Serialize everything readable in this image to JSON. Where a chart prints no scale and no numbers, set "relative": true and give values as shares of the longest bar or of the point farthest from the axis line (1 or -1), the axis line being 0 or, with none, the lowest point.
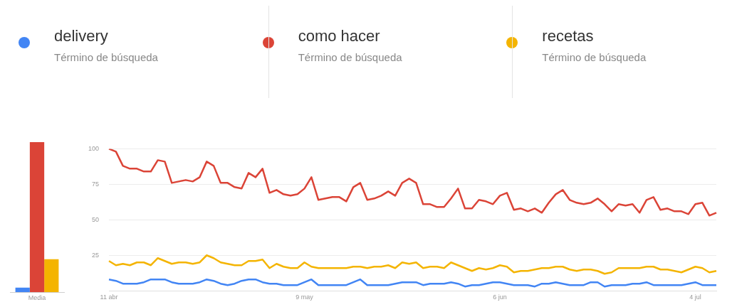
{
  "chart_data": [
    {
      "type": "bar",
      "relative": true,
      "categories": [
        "Media"
      ],
      "grid": false,
      "legend": false,
      "series": [
        {
          "color": "#4285f4",
          "values": [
            0.03
          ]
        },
        {
          "color": "#db4437",
          "values": [
            1
          ]
        },
        {
          "color": "#f4b400",
          "values": [
            0.22
          ]
        }
      ]
    },
    {
      "type": "line",
      "legend": "top",
      "grid": "y",
      "marker": "none",
      "line_style": "solid",
      "annotations": [
        "Término de búsqueda",
        "Término de búsqueda",
        "Término de búsqueda"
      ],
      "categories": [
        "11 abr",
        null,
        null,
        null,
        null,
        null,
        null,
        null,
        null,
        null,
        null,
        null,
        null,
        null,
        null,
        null,
        null,
        null,
        null,
        null,
        null,
        null,
        null,
        null,
        null,
        null,
        null,
        null,
        "9 may",
        null,
        null,
        null,
        null,
        null,
        null,
        null,
        null,
        null,
        null,
        null,
        null,
        null,
        null,
        null,
        null,
        null,
        null,
        null,
        null,
        null,
        null,
        null,
        null,
        null,
        null,
        null,
        "6 jun",
        null,
        null,
        null,
        null,
        null,
        null,
        null,
        null,
        null,
        null,
        null,
        null,
        null,
        null,
        null,
        null,
        null,
        null,
        null,
        null,
        null,
        null,
        null,
        null,
        null,
        null,
        null,
        "4 jul",
        null,
        null,
        null
      ],
      "ylim": [
        0,
        100
      ],
      "yticks": [
        {
          "value": 0,
          "label": null
        },
        25,
        50,
        75,
        100
      ],
      "series": [
        {
          "name": "delivery",
          "color": "#4285f4",
          "values": [
            8,
            7,
            5,
            5,
            5,
            6,
            8,
            8,
            8,
            6,
            5,
            5,
            5,
            6,
            8,
            7,
            5,
            4,
            5,
            7,
            8,
            8,
            6,
            5,
            5,
            4,
            4,
            4,
            6,
            8,
            4,
            4,
            4,
            4,
            4,
            6,
            8,
            4,
            4,
            4,
            4,
            5,
            6,
            6,
            6,
            4,
            5,
            5,
            5,
            6,
            5,
            3,
            4,
            4,
            5,
            6,
            6,
            5,
            4,
            4,
            4,
            3,
            5,
            5,
            6,
            5,
            4,
            4,
            4,
            6,
            6,
            3,
            4,
            4,
            4,
            5,
            5,
            6,
            4,
            4,
            4,
            4,
            4,
            5,
            6,
            4,
            4,
            4
          ]
        },
        {
          "name": "como hacer",
          "color": "#db4437",
          "values": [
            100,
            98,
            88,
            86,
            86,
            84,
            84,
            92,
            91,
            76,
            77,
            78,
            77,
            80,
            91,
            88,
            76,
            76,
            73,
            72,
            83,
            80,
            86,
            69,
            71,
            68,
            67,
            68,
            72,
            80,
            64,
            65,
            66,
            66,
            63,
            73,
            76,
            64,
            65,
            67,
            70,
            67,
            76,
            79,
            76,
            61,
            61,
            59,
            59,
            65,
            72,
            58,
            58,
            64,
            63,
            61,
            67,
            69,
            57,
            58,
            56,
            58,
            55,
            62,
            68,
            71,
            64,
            62,
            61,
            62,
            65,
            61,
            56,
            61,
            60,
            61,
            55,
            64,
            66,
            57,
            58,
            56,
            56,
            54,
            61,
            62,
            53,
            55
          ]
        },
        {
          "name": "recetas",
          "color": "#f4b400",
          "values": [
            21,
            18,
            19,
            18,
            20,
            20,
            18,
            23,
            21,
            19,
            20,
            20,
            19,
            20,
            25,
            23,
            20,
            19,
            18,
            18,
            21,
            21,
            22,
            16,
            19,
            17,
            16,
            16,
            20,
            17,
            16,
            16,
            16,
            16,
            16,
            17,
            17,
            16,
            17,
            17,
            18,
            16,
            20,
            19,
            20,
            16,
            17,
            17,
            16,
            20,
            18,
            16,
            14,
            16,
            15,
            16,
            18,
            17,
            13,
            14,
            14,
            15,
            16,
            16,
            17,
            17,
            15,
            14,
            15,
            15,
            14,
            12,
            13,
            16,
            16,
            16,
            16,
            17,
            17,
            15,
            15,
            14,
            13,
            15,
            17,
            16,
            13,
            14
          ]
        }
      ]
    }
  ]
}
